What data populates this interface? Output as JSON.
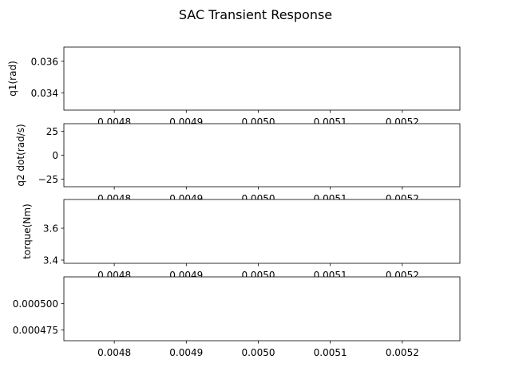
{
  "title": "SAC Transient Response",
  "chart_data": [
    {
      "type": "line",
      "ylabel": "q1(rad)",
      "xlim": [
        0.00473,
        0.00528
      ],
      "ylim": [
        0.0329,
        0.0369
      ],
      "xticks": [
        "0.0048",
        "0.0049",
        "0.0050",
        "0.0051",
        "0.0052"
      ],
      "xtick_values": [
        0.0048,
        0.0049,
        0.005,
        0.0051,
        0.0052
      ],
      "yticks": [
        "0.034",
        "0.036"
      ],
      "ytick_values": [
        0.034,
        0.036
      ],
      "series": []
    },
    {
      "type": "line",
      "ylabel": "q2 dot(rad/s)",
      "xlim": [
        0.00473,
        0.00528
      ],
      "ylim": [
        -33,
        33
      ],
      "xticks": [
        "0.0048",
        "0.0049",
        "0.0050",
        "0.0051",
        "0.0052"
      ],
      "xtick_values": [
        0.0048,
        0.0049,
        0.005,
        0.0051,
        0.0052
      ],
      "yticks": [
        "25",
        "0",
        "−25"
      ],
      "ytick_values": [
        25,
        0,
        -25
      ],
      "series": []
    },
    {
      "type": "line",
      "ylabel": "torque(Nm)",
      "xlim": [
        0.00473,
        0.00528
      ],
      "ylim": [
        3.38,
        3.78
      ],
      "xticks": [
        "0.0048",
        "0.0049",
        "0.0050",
        "0.0051",
        "0.0052"
      ],
      "xtick_values": [
        0.0048,
        0.0049,
        0.005,
        0.0051,
        0.0052
      ],
      "yticks": [
        "3.6",
        "3.4"
      ],
      "ytick_values": [
        3.6,
        3.4
      ],
      "series": []
    },
    {
      "type": "line",
      "ylabel": "",
      "xlim": [
        0.00473,
        0.00528
      ],
      "ylim": [
        0.000465,
        0.000525
      ],
      "xticks": [
        "0.0048",
        "0.0049",
        "0.0050",
        "0.0051",
        "0.0052"
      ],
      "xtick_values": [
        0.0048,
        0.0049,
        0.005,
        0.0051,
        0.0052
      ],
      "yticks": [
        "0.000500",
        "0.000475"
      ],
      "ytick_values": [
        0.0005,
        0.000475
      ],
      "series": []
    }
  ]
}
